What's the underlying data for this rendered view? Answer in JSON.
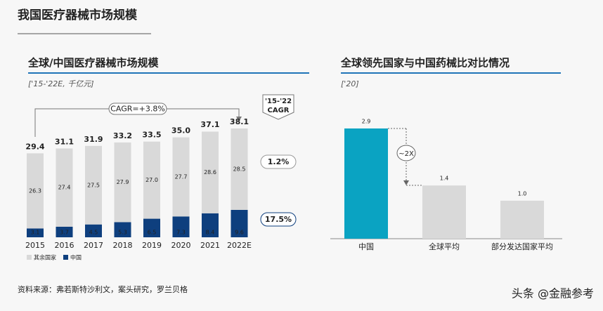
{
  "header": {
    "title": "我国医疗器械市场规模"
  },
  "footer": {
    "source": "资料来源：弗若斯特沙利文，案头研究，罗兰贝格",
    "watermark": "头条 @金融参考"
  },
  "chart_data": [
    {
      "type": "stacked_bar",
      "title": "全球/中国医疗器械市场规模",
      "subtitle": "['15-'22E, 千亿元]",
      "categories": [
        "2015",
        "2016",
        "2017",
        "2018",
        "2019",
        "2020",
        "2021",
        "2022E"
      ],
      "series": [
        {
          "name": "其余国家",
          "color": "#d9d9d9",
          "values": [
            26.3,
            27.4,
            27.5,
            27.9,
            27.0,
            27.7,
            28.6,
            28.5
          ],
          "value_labels": [
            "26.3",
            "27.4",
            "27.5",
            "27.9",
            "27.0",
            "27.7",
            "28.6",
            "28.5"
          ]
        },
        {
          "name": "中国",
          "color": "#0e3f7e",
          "values": [
            3.1,
            3.7,
            4.5,
            5.3,
            6.5,
            7.3,
            8.4,
            9.6
          ],
          "value_labels": [
            "3.1",
            "3.7",
            "4.5",
            "5.3",
            "6.5",
            "7.3",
            "8.4",
            "9.6"
          ]
        }
      ],
      "totals": [
        29.4,
        31.1,
        31.9,
        33.2,
        33.5,
        35.0,
        37.1,
        38.1
      ],
      "total_labels": [
        "29.4",
        "31.1",
        "31.9",
        "33.2",
        "33.5",
        "35.0",
        "37.1",
        "38.1"
      ],
      "annotations": {
        "cagr": "CAGR=+3.8%",
        "cagr_header": [
          "'15-'22",
          "CAGR"
        ],
        "segment_cagr": [
          "1.2%",
          "17.5%"
        ]
      }
    },
    {
      "type": "bar",
      "title": "全球领先国家与中国药械比对比情况",
      "subtitle": "['20]",
      "categories": [
        "中国",
        "全球平均",
        "部分发达国家平均"
      ],
      "values": [
        2.9,
        1.4,
        1.0
      ],
      "value_labels": [
        "2.9",
        "1.4",
        "1.0"
      ],
      "colors": [
        "#0aa3c2",
        "#d9d9d9",
        "#d9d9d9"
      ],
      "annotations": {
        "ratio": "~2X"
      }
    }
  ]
}
